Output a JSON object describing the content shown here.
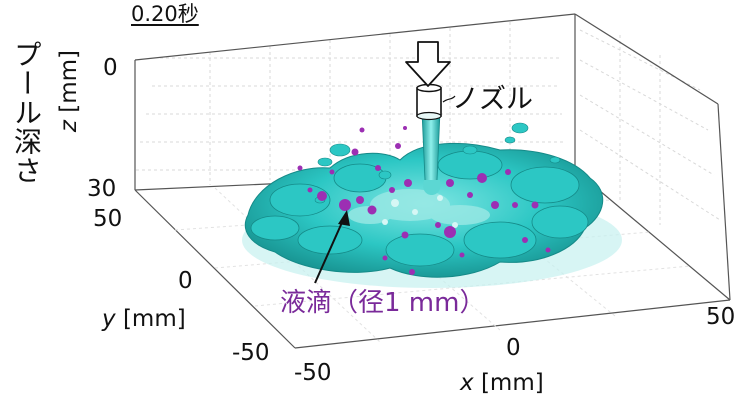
{
  "time_label": "0.20秒",
  "pool_depth_label": "プール深さ",
  "z_axis": {
    "var": "z",
    "unit": "[mm]",
    "ticks": [
      "0",
      "30"
    ]
  },
  "y_axis": {
    "var": "y",
    "unit": "[mm]",
    "ticks": [
      "50",
      "0",
      "-50"
    ]
  },
  "x_axis": {
    "var": "x",
    "unit": "[mm]",
    "ticks": [
      "-50",
      "0",
      "50"
    ]
  },
  "nozzle_label": "ノズル",
  "droplet_label": "液滴（径1 mm）",
  "colors": {
    "liquid": "#2cc7c4",
    "liquid_dark": "#1a9a98",
    "droplet": "#9c2fb3",
    "box": "#555555",
    "grid": "#d8d8d8"
  }
}
